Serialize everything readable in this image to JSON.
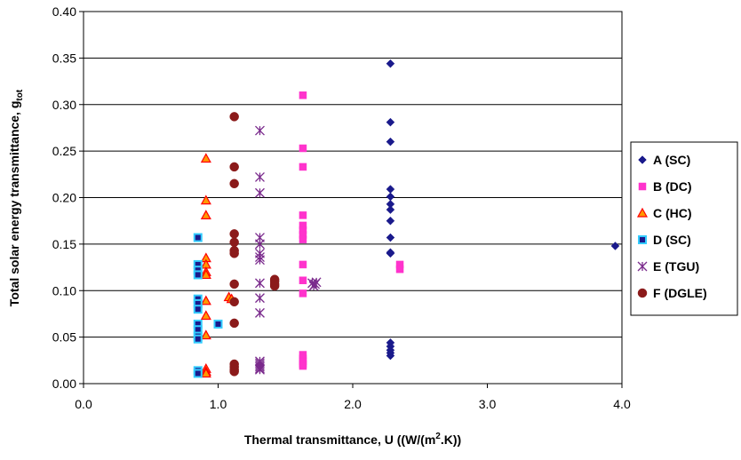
{
  "chart_data": {
    "type": "scatter",
    "xlabel_main": "Thermal transmittance, U ((W/(m",
    "xlabel_sup": "2",
    "xlabel_end": ".K))",
    "ylabel_main": "Total solar energy transmittance, g",
    "ylabel_sub": "tot",
    "xlim": [
      0,
      4
    ],
    "ylim": [
      0,
      0.4
    ],
    "x_ticks": [
      "0.0",
      "1.0",
      "2.0",
      "3.0",
      "4.0"
    ],
    "y_ticks": [
      "0.00",
      "0.05",
      "0.10",
      "0.15",
      "0.20",
      "0.25",
      "0.30",
      "0.35",
      "0.40"
    ],
    "grid": "horizontal",
    "legend_position": "right",
    "series": [
      {
        "name": "A (SC)",
        "marker": "diamond",
        "color": "#1a1a8c",
        "x": [
          2.28,
          2.28,
          2.28,
          2.28,
          2.28,
          2.28,
          2.28,
          2.28,
          2.28,
          2.28,
          2.28,
          2.28,
          2.28,
          2.28,
          2.28,
          2.28,
          3.95
        ],
        "y": [
          0.344,
          0.281,
          0.26,
          0.209,
          0.201,
          0.193,
          0.187,
          0.175,
          0.157,
          0.14,
          0.141,
          0.044,
          0.04,
          0.036,
          0.033,
          0.03,
          0.148
        ]
      },
      {
        "name": "B (DC)",
        "marker": "square",
        "color": "#ff33cc",
        "x": [
          1.63,
          1.63,
          1.63,
          1.63,
          1.63,
          1.63,
          1.63,
          1.63,
          1.63,
          1.63,
          1.63,
          1.63,
          1.63,
          1.63,
          1.63,
          1.63,
          2.35,
          2.35
        ],
        "y": [
          0.31,
          0.253,
          0.233,
          0.181,
          0.17,
          0.165,
          0.16,
          0.155,
          0.128,
          0.111,
          0.097,
          0.031,
          0.027,
          0.024,
          0.021,
          0.019,
          0.128,
          0.123
        ]
      },
      {
        "name": "C (HC)",
        "marker": "triangle",
        "color": "#ff9900",
        "stroke": "#ff0000",
        "x": [
          0.91,
          0.91,
          0.91,
          0.91,
          0.91,
          0.91,
          0.91,
          0.91,
          0.91,
          0.91,
          0.91,
          0.91,
          0.91,
          1.08,
          1.1
        ],
        "y": [
          0.242,
          0.197,
          0.181,
          0.135,
          0.128,
          0.12,
          0.117,
          0.089,
          0.073,
          0.052,
          0.016,
          0.013,
          0.011,
          0.093,
          0.091
        ]
      },
      {
        "name": "D (SC)",
        "marker": "square",
        "color": "#1a1a8c",
        "stroke": "#33ccff",
        "x": [
          0.85,
          0.85,
          0.85,
          0.85,
          0.85,
          0.85,
          0.85,
          0.85,
          0.85,
          0.85,
          0.85,
          0.85,
          0.85,
          1.0
        ],
        "y": [
          0.157,
          0.128,
          0.122,
          0.117,
          0.091,
          0.086,
          0.08,
          0.064,
          0.058,
          0.051,
          0.048,
          0.014,
          0.011,
          0.064
        ]
      },
      {
        "name": "E (TGU)",
        "marker": "asterisk",
        "color": "#7a2a8c",
        "x": [
          1.31,
          1.31,
          1.31,
          1.31,
          1.31,
          1.31,
          1.31,
          1.31,
          1.31,
          1.31,
          1.31,
          1.31,
          1.31,
          1.31,
          1.31,
          1.31,
          1.31,
          1.7,
          1.71,
          1.72,
          1.73
        ],
        "y": [
          0.272,
          0.222,
          0.205,
          0.157,
          0.15,
          0.14,
          0.136,
          0.133,
          0.108,
          0.092,
          0.076,
          0.024,
          0.022,
          0.02,
          0.018,
          0.016,
          0.015,
          0.108,
          0.105,
          0.107,
          0.109
        ]
      },
      {
        "name": "F (DGLE)",
        "marker": "circle",
        "color": "#8b1a1a",
        "x": [
          1.12,
          1.12,
          1.12,
          1.12,
          1.12,
          1.12,
          1.12,
          1.12,
          1.12,
          1.12,
          1.12,
          1.12,
          1.12,
          1.12,
          1.42,
          1.42,
          1.42,
          1.42
        ],
        "y": [
          0.287,
          0.233,
          0.215,
          0.161,
          0.152,
          0.143,
          0.14,
          0.107,
          0.088,
          0.065,
          0.021,
          0.018,
          0.015,
          0.013,
          0.112,
          0.11,
          0.107,
          0.105
        ]
      }
    ]
  }
}
